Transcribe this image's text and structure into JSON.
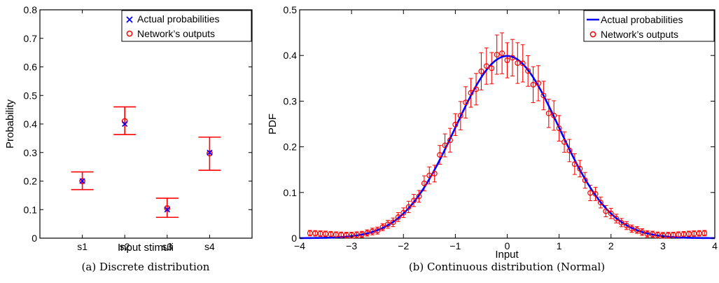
{
  "chart_data": [
    {
      "type": "scatter",
      "caption": "(a)  Discrete distribution",
      "xlabel": "Input stimuli",
      "ylabel": "Probability",
      "categories": [
        "s1",
        "s2",
        "s3",
        "s4"
      ],
      "ylim": [
        0,
        0.8
      ],
      "yticks": [
        "0",
        "0.1",
        "0.2",
        "0.3",
        "0.4",
        "0.5",
        "0.6",
        "0.7",
        "0.8"
      ],
      "legend_position": "top-right",
      "series": [
        {
          "name": "Actual probabilities",
          "marker": "x",
          "color": "#0000ff",
          "values": [
            0.2,
            0.4,
            0.1,
            0.3
          ]
        },
        {
          "name": "Network’s outputs",
          "marker": "o",
          "color": "#ff0000",
          "values": [
            0.2,
            0.41,
            0.105,
            0.297
          ],
          "error_low": [
            0.17,
            0.363,
            0.073,
            0.238
          ],
          "error_high": [
            0.232,
            0.46,
            0.14,
            0.354
          ]
        }
      ]
    },
    {
      "type": "line",
      "caption": "(b)  Continuous distribution (Normal)",
      "xlabel": "Input",
      "ylabel": "PDF",
      "xlim": [
        -4,
        4
      ],
      "ylim": [
        0,
        0.5
      ],
      "xticks": [
        "−4",
        "−3",
        "−2",
        "−1",
        "0",
        "1",
        "2",
        "3",
        "4"
      ],
      "yticks": [
        "0",
        "0.1",
        "0.2",
        "0.3",
        "0.4",
        "0.5"
      ],
      "legend_position": "top-right",
      "series": [
        {
          "name": "Actual probabilities",
          "style": "line",
          "color": "#0000ff",
          "function": "standard normal pdf"
        },
        {
          "name": "Network’s outputs",
          "style": "markers with error bars",
          "color": "#ff0000",
          "x_start": -3.8,
          "x_end": 3.8,
          "x_step": 0.1
        }
      ]
    }
  ]
}
